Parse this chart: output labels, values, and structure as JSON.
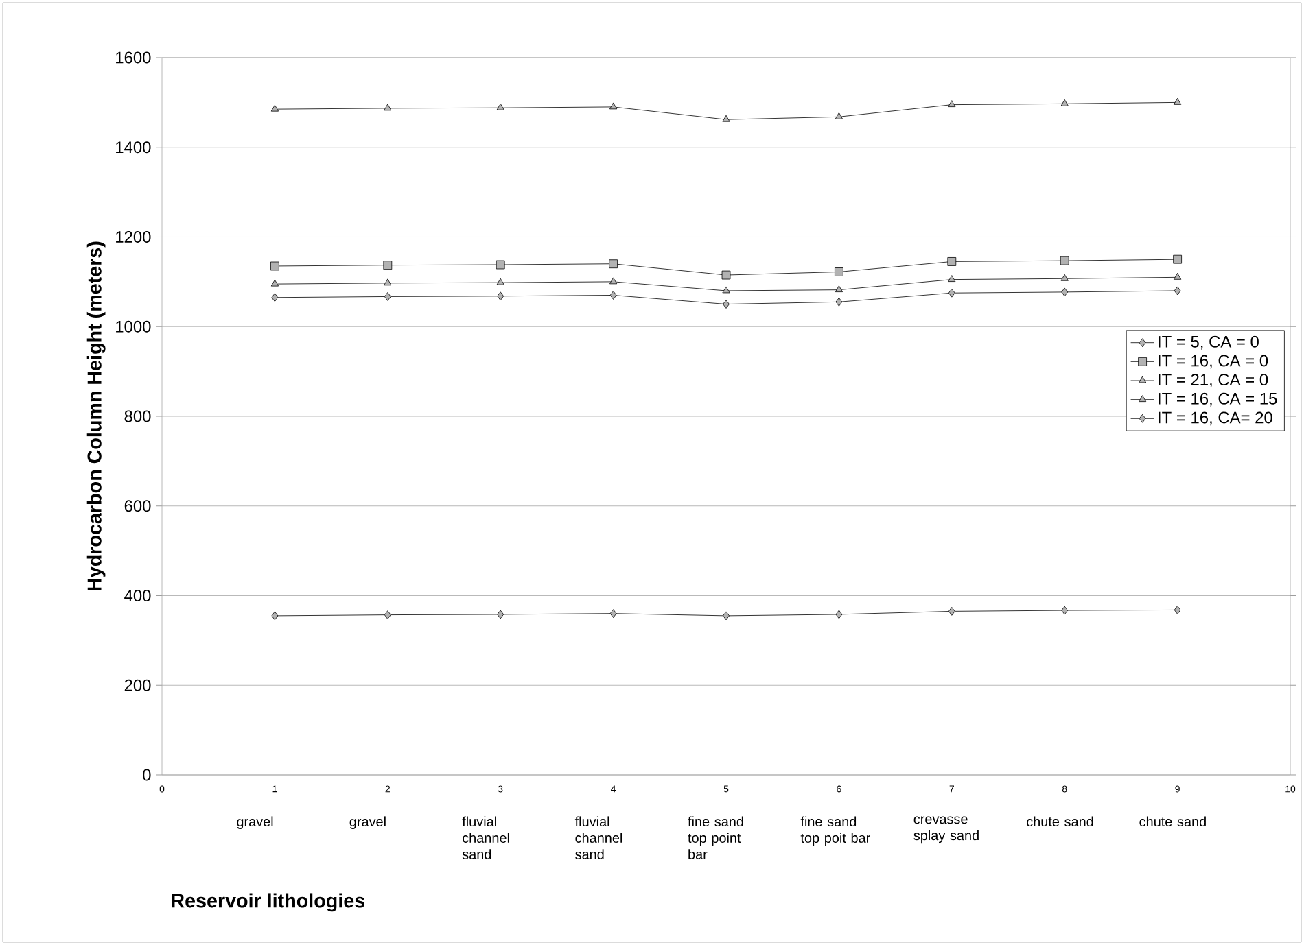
{
  "chart_data": {
    "type": "line",
    "ylabel": "Hydrocarbon Column Height (meters)",
    "x": [
      1,
      2,
      3,
      4,
      5,
      6,
      7,
      8,
      9
    ],
    "series": [
      {
        "name": "IT = 5, CA = 0",
        "color": "#000000",
        "marker": "diamond",
        "values": [
          355,
          357,
          358,
          360,
          355,
          358,
          365,
          367,
          368
        ]
      },
      {
        "name": "IT = 16, CA = 0",
        "color": "#000000",
        "marker": "square",
        "values": [
          1135,
          1137,
          1138,
          1140,
          1115,
          1122,
          1145,
          1147,
          1150
        ]
      },
      {
        "name": "IT = 21, CA = 0",
        "color": "#000000",
        "marker": "triangle",
        "values": [
          1485,
          1487,
          1488,
          1490,
          1462,
          1468,
          1495,
          1497,
          1500
        ]
      },
      {
        "name": "IT = 16, CA = 15",
        "color": "#000000",
        "marker": "triangle",
        "values": [
          1095,
          1097,
          1098,
          1100,
          1080,
          1082,
          1105,
          1107,
          1110
        ]
      },
      {
        "name": "IT = 16, CA= 20",
        "color": "#000000",
        "marker": "diamond",
        "values": [
          1065,
          1067,
          1068,
          1070,
          1050,
          1055,
          1075,
          1077,
          1080
        ]
      }
    ],
    "xlim": [
      0,
      10
    ],
    "xticks": [
      0,
      1,
      2,
      3,
      4,
      5,
      6,
      7,
      8,
      9,
      10
    ],
    "ylim": [
      0,
      1600
    ],
    "yticks": [
      0,
      200,
      400,
      600,
      800,
      1000,
      1200,
      1400,
      1600
    ],
    "grid": "y",
    "legend": "right",
    "line_style": "solid",
    "annotations": [
      "gravel",
      "gravel",
      "fluvial channel sand",
      "fluvial channel sand",
      "fine sand top point bar",
      "fine sand top poit bar",
      "crevasse splay sand",
      "chute sand",
      "chute sand",
      "Reservoir lithologies"
    ]
  }
}
